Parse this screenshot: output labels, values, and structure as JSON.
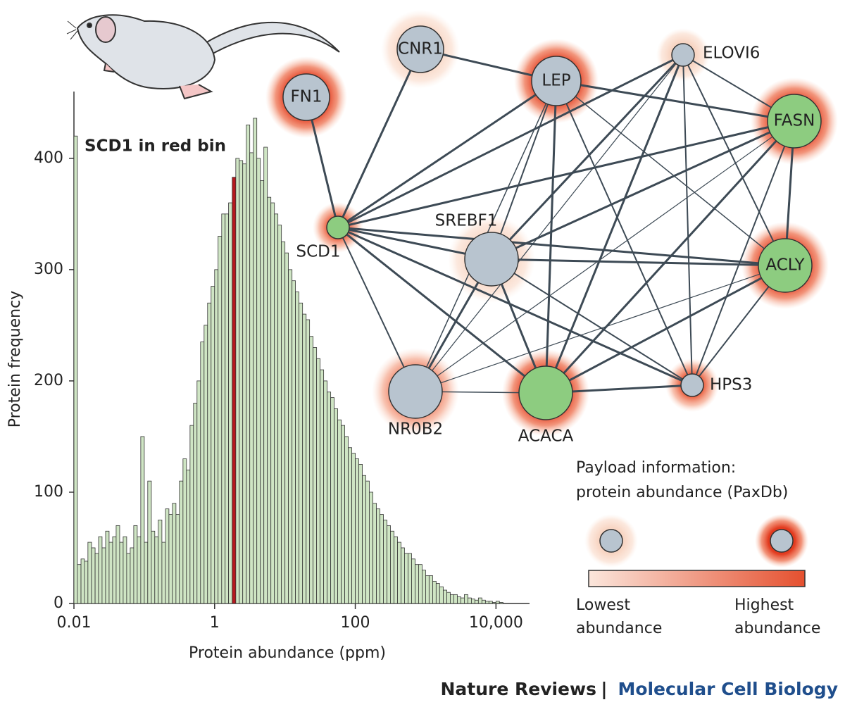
{
  "chart_data": {
    "type": "histogram",
    "annotation": "SCD1 in red bin",
    "xlabel": "Protein abundance (ppm)",
    "ylabel": "Protein frequency",
    "xscale": "log",
    "xlim": [
      0.01,
      30000
    ],
    "ylim": [
      0,
      460
    ],
    "xticks": [
      0.01,
      1,
      100,
      {
        "value": 10000,
        "label": "10,000"
      }
    ],
    "yticks": [
      0,
      100,
      200,
      300,
      400
    ],
    "color": "#cfe5c4",
    "edgecolor": "#333333",
    "highlight": {
      "index": 45,
      "color": "#b5191f"
    },
    "bins": [
      0.01,
      0.0112,
      0.0126,
      0.0141,
      0.0158,
      0.0178,
      0.02,
      0.0224,
      0.0251,
      0.0282,
      0.0316,
      0.0355,
      0.0398,
      0.0447,
      0.0501,
      0.0562,
      0.0631,
      0.0708,
      0.0794,
      0.0891,
      0.1,
      0.112,
      0.126,
      0.141,
      0.158,
      0.178,
      0.2,
      0.224,
      0.251,
      0.282,
      0.316,
      0.355,
      0.398,
      0.447,
      0.501,
      0.562,
      0.631,
      0.708,
      0.794,
      0.891,
      1,
      1.12,
      1.26,
      1.41,
      1.58,
      1.78,
      2,
      2.24,
      2.51,
      2.82,
      3.16,
      3.55,
      3.98,
      4.47,
      5.01,
      5.62,
      6.31,
      7.08,
      7.94,
      8.91,
      10,
      11.2,
      12.6,
      14.1,
      15.8,
      17.8,
      20,
      22.4,
      25.1,
      28.2,
      31.6,
      35.5,
      39.8,
      44.7,
      50.1,
      56.2,
      63.1,
      70.8,
      79.4,
      89.1,
      100,
      112,
      126,
      141,
      158,
      178,
      200,
      224,
      251,
      282,
      316,
      355,
      398,
      447,
      501,
      562,
      631,
      708,
      794,
      891,
      1000,
      1120,
      1260,
      1410,
      1580,
      1780,
      2000,
      2240,
      2510,
      2820,
      3160,
      3550,
      3980,
      4470,
      5010,
      5620,
      6310,
      7080,
      7940,
      8910,
      10000,
      11200,
      12600
    ],
    "values": [
      420,
      35,
      40,
      38,
      55,
      50,
      45,
      60,
      50,
      65,
      55,
      60,
      70,
      55,
      60,
      45,
      50,
      70,
      60,
      150,
      55,
      110,
      65,
      60,
      75,
      55,
      85,
      80,
      90,
      80,
      110,
      130,
      120,
      160,
      180,
      200,
      235,
      250,
      270,
      285,
      300,
      330,
      350,
      350,
      360,
      383,
      400,
      398,
      395,
      430,
      405,
      436,
      400,
      380,
      410,
      365,
      360,
      350,
      340,
      325,
      315,
      300,
      290,
      280,
      270,
      260,
      255,
      240,
      230,
      220,
      210,
      200,
      190,
      185,
      175,
      165,
      160,
      150,
      140,
      135,
      130,
      125,
      115,
      110,
      100,
      90,
      85,
      80,
      75,
      70,
      65,
      60,
      55,
      50,
      45,
      45,
      40,
      35,
      35,
      30,
      25,
      25,
      20,
      18,
      15,
      12,
      10,
      8,
      8,
      6,
      5,
      8,
      5,
      4,
      3,
      5,
      3,
      2,
      2,
      1,
      2,
      1
    ]
  },
  "network": {
    "nodes": [
      {
        "label": "FN1",
        "color": "#b8c4cf"
      },
      {
        "label": "CNR1",
        "color": "#b8c4cf"
      },
      {
        "label": "LEP",
        "color": "#b8c4cf"
      },
      {
        "label": "ELOVI6",
        "color": "#b8c4cf"
      },
      {
        "label": "FASN",
        "color": "#8dcc80"
      },
      {
        "label": "SCD1",
        "color": "#8dcc80"
      },
      {
        "label": "SREBF1",
        "color": "#b8c4cf"
      },
      {
        "label": "ACLY",
        "color": "#8dcc80"
      },
      {
        "label": "NR0B2",
        "color": "#b8c4cf"
      },
      {
        "label": "ACACA",
        "color": "#8dcc80"
      },
      {
        "label": "HPS3",
        "color": "#b8c4cf"
      }
    ]
  },
  "legend": {
    "title": [
      "Payload information:",
      "protein abundance (PaxDb)"
    ],
    "low": [
      "Lowest",
      "abundance"
    ],
    "high": [
      "Highest",
      "abundance"
    ]
  },
  "footer": {
    "journal": "Nature Reviews",
    "separator": "|",
    "subtitle": "Molecular Cell Biology"
  }
}
